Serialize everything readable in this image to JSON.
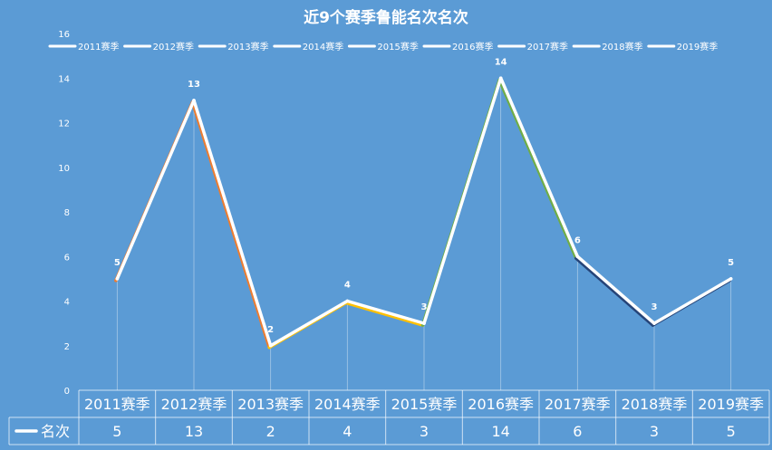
{
  "chart_data": {
    "type": "line",
    "title": "近9个赛季鲁能名次名次",
    "categories": [
      "2011赛季",
      "2012赛季",
      "2013赛季",
      "2014赛季",
      "2015赛季",
      "2016赛季",
      "2017赛季",
      "2018赛季",
      "2019赛季"
    ],
    "series": [
      {
        "name": "名次",
        "values": [
          5,
          13,
          2,
          4,
          3,
          14,
          6,
          3,
          5
        ],
        "color": "#ffffff"
      }
    ],
    "segment_shadow_colors": [
      "#ed7d31",
      "#ed7d31",
      "#ffc000",
      "#ffc000",
      "#70ad47",
      "#70ad47",
      "#264478",
      "#264478"
    ],
    "legend_entries": [
      "2011赛季",
      "2012赛季",
      "2013赛季",
      "2014赛季",
      "2015赛季",
      "2016赛季",
      "2017赛季",
      "2018赛季",
      "2019赛季"
    ],
    "legend_position": "top",
    "y_ticks": [
      0,
      2,
      4,
      6,
      8,
      10,
      12,
      14,
      16
    ],
    "ylim": [
      0,
      16
    ],
    "grid": false,
    "data_table": true,
    "data_labels": true,
    "background": "#5b9bd5",
    "text_color": "#ffffff"
  }
}
